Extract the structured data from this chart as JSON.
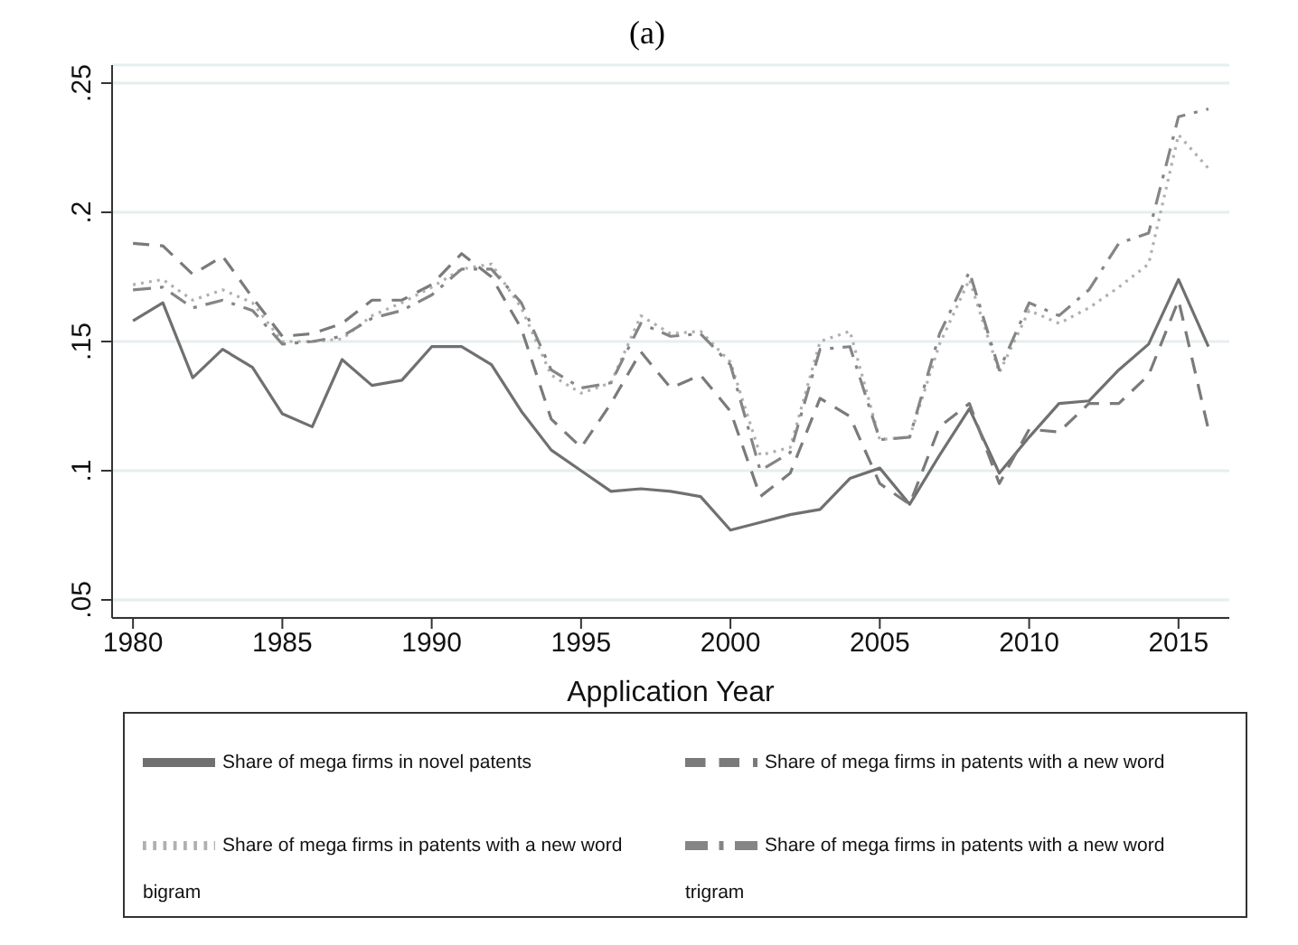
{
  "chart_data": {
    "type": "line",
    "title": "(a)",
    "xlabel": "Application Year",
    "x": [
      1980,
      1981,
      1982,
      1983,
      1984,
      1985,
      1986,
      1987,
      1988,
      1989,
      1990,
      1991,
      1992,
      1993,
      1994,
      1995,
      1996,
      1997,
      1998,
      1999,
      2000,
      2001,
      2002,
      2003,
      2004,
      2005,
      2006,
      2007,
      2008,
      2009,
      2010,
      2011,
      2012,
      2013,
      2014,
      2015,
      2016
    ],
    "xlim": [
      1979.3,
      2016.7
    ],
    "xticks": [
      1980,
      1985,
      1990,
      1995,
      2000,
      2005,
      2010,
      2015
    ],
    "ylim": [
      0.043,
      0.257
    ],
    "yticks": [
      {
        "value": 0.05,
        "label": ".05"
      },
      {
        "value": 0.1,
        "label": ".1"
      },
      {
        "value": 0.15,
        "label": ".15"
      },
      {
        "value": 0.2,
        "label": ".2"
      },
      {
        "value": 0.25,
        "label": ".25"
      }
    ],
    "grid": "y",
    "legend": "bottom",
    "marker": "none",
    "series": [
      {
        "name": "Share of mega firms in novel patents",
        "color": "#707070",
        "line_style": "solid",
        "values": [
          0.158,
          0.165,
          0.136,
          0.147,
          0.14,
          0.122,
          0.117,
          0.143,
          0.133,
          0.135,
          0.148,
          0.148,
          0.141,
          0.123,
          0.108,
          0.1,
          0.092,
          0.093,
          0.092,
          0.09,
          0.077,
          0.08,
          0.083,
          0.085,
          0.097,
          0.101,
          0.087,
          0.106,
          0.124,
          0.099,
          0.113,
          0.126,
          0.127,
          0.139,
          0.149,
          0.174,
          0.148
        ]
      },
      {
        "name": "Share of mega firms in patents with a new word",
        "color": "#7a7a7a",
        "line_style": "dashed",
        "values": [
          0.188,
          0.187,
          0.176,
          0.183,
          0.167,
          0.152,
          0.153,
          0.157,
          0.166,
          0.166,
          0.172,
          0.184,
          0.175,
          0.155,
          0.12,
          0.109,
          0.126,
          0.146,
          0.132,
          0.137,
          0.123,
          0.09,
          0.099,
          0.128,
          0.121,
          0.095,
          0.087,
          0.117,
          0.126,
          0.095,
          0.116,
          0.115,
          0.126,
          0.126,
          0.137,
          0.166,
          0.116
        ]
      },
      {
        "name": "Share of mega firms in patents with a new word bigram",
        "color": "#b0b0b0",
        "line_style": "dotted",
        "values": [
          0.172,
          0.174,
          0.166,
          0.17,
          0.165,
          0.15,
          0.15,
          0.151,
          0.16,
          0.165,
          0.171,
          0.178,
          0.18,
          0.163,
          0.137,
          0.13,
          0.134,
          0.16,
          0.153,
          0.154,
          0.142,
          0.106,
          0.109,
          0.15,
          0.154,
          0.112,
          0.113,
          0.149,
          0.174,
          0.138,
          0.162,
          0.157,
          0.163,
          0.171,
          0.18,
          0.23,
          0.217
        ]
      },
      {
        "name": "Share of mega firms in patents with a new word trigram",
        "color": "#858585",
        "line_style": "dashdot",
        "values": [
          0.17,
          0.171,
          0.163,
          0.166,
          0.162,
          0.149,
          0.15,
          0.152,
          0.159,
          0.162,
          0.168,
          0.178,
          0.178,
          0.165,
          0.139,
          0.132,
          0.134,
          0.157,
          0.152,
          0.153,
          0.141,
          0.1,
          0.107,
          0.147,
          0.148,
          0.112,
          0.113,
          0.153,
          0.177,
          0.139,
          0.165,
          0.16,
          0.17,
          0.188,
          0.192,
          0.237,
          0.24
        ]
      }
    ]
  }
}
